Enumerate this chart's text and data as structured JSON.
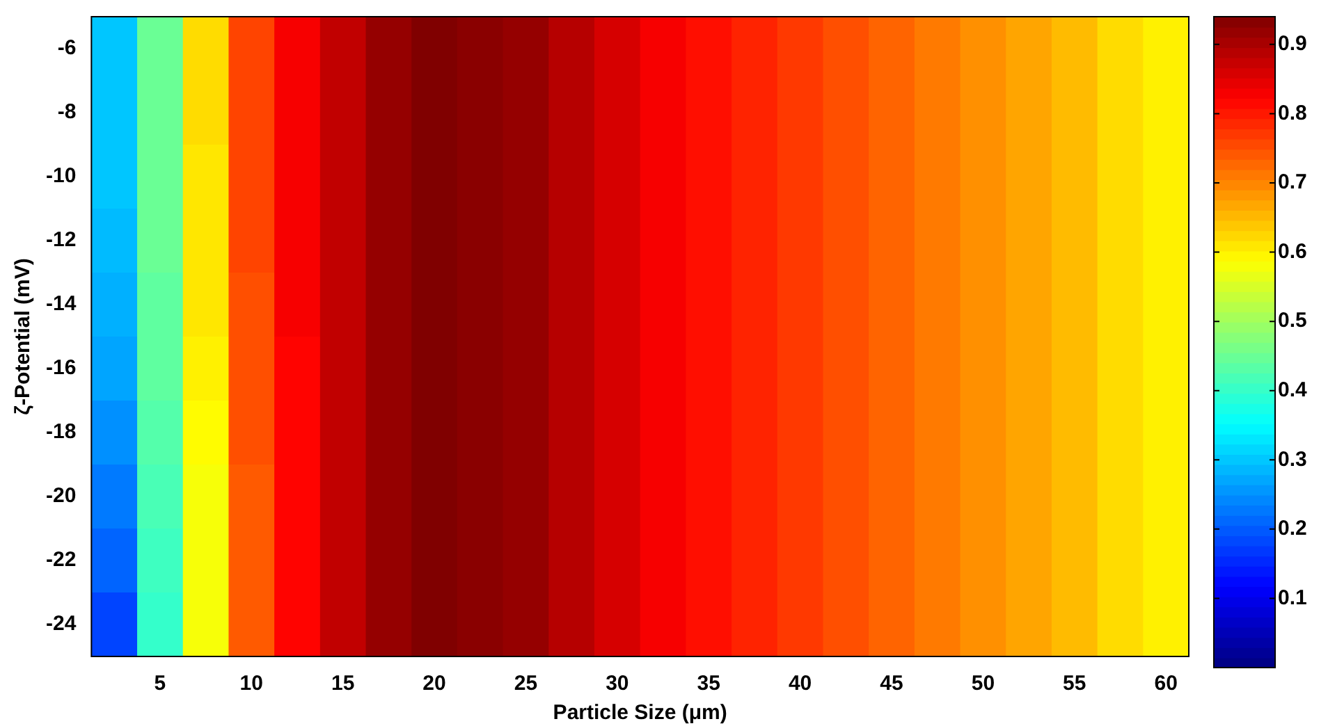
{
  "chart_data": {
    "type": "heatmap",
    "xlabel": "Particle Size (μm)",
    "ylabel": "ζ-Potential (mV)",
    "categories": [
      null,
      "5",
      null,
      "10",
      null,
      "15",
      null,
      "20",
      null,
      "25",
      null,
      "30",
      null,
      "35",
      null,
      "40",
      null,
      "45",
      null,
      "50",
      null,
      "55",
      null,
      "60"
    ],
    "y_categories": [
      "-6",
      "-8",
      "-10",
      "-12",
      "-14",
      "-16",
      "-18",
      "-20",
      "-22",
      "-24"
    ],
    "cells": [
      [
        0.3,
        0.45,
        0.62,
        0.76,
        0.83,
        0.88,
        0.92,
        0.94,
        0.93,
        0.92,
        0.89,
        0.86,
        0.83,
        0.81,
        0.79,
        0.77,
        0.75,
        0.73,
        0.71,
        0.69,
        0.67,
        0.65,
        0.62,
        0.6
      ],
      [
        0.3,
        0.45,
        0.62,
        0.76,
        0.83,
        0.88,
        0.92,
        0.94,
        0.93,
        0.92,
        0.89,
        0.86,
        0.83,
        0.81,
        0.79,
        0.77,
        0.75,
        0.73,
        0.71,
        0.69,
        0.67,
        0.65,
        0.62,
        0.6
      ],
      [
        0.3,
        0.45,
        0.61,
        0.76,
        0.83,
        0.88,
        0.92,
        0.94,
        0.93,
        0.92,
        0.89,
        0.86,
        0.83,
        0.81,
        0.79,
        0.77,
        0.75,
        0.73,
        0.71,
        0.69,
        0.67,
        0.65,
        0.62,
        0.6
      ],
      [
        0.29,
        0.45,
        0.61,
        0.76,
        0.83,
        0.88,
        0.92,
        0.94,
        0.93,
        0.92,
        0.89,
        0.86,
        0.83,
        0.81,
        0.79,
        0.77,
        0.75,
        0.73,
        0.71,
        0.69,
        0.67,
        0.65,
        0.62,
        0.6
      ],
      [
        0.28,
        0.44,
        0.61,
        0.75,
        0.83,
        0.88,
        0.92,
        0.94,
        0.93,
        0.92,
        0.89,
        0.86,
        0.83,
        0.81,
        0.79,
        0.77,
        0.75,
        0.73,
        0.71,
        0.69,
        0.67,
        0.65,
        0.62,
        0.6
      ],
      [
        0.27,
        0.44,
        0.6,
        0.75,
        0.82,
        0.88,
        0.92,
        0.94,
        0.93,
        0.92,
        0.89,
        0.86,
        0.83,
        0.81,
        0.79,
        0.77,
        0.75,
        0.73,
        0.71,
        0.69,
        0.67,
        0.65,
        0.62,
        0.6
      ],
      [
        0.25,
        0.43,
        0.59,
        0.75,
        0.82,
        0.88,
        0.92,
        0.94,
        0.93,
        0.92,
        0.89,
        0.86,
        0.83,
        0.81,
        0.79,
        0.77,
        0.75,
        0.73,
        0.71,
        0.69,
        0.67,
        0.65,
        0.62,
        0.6
      ],
      [
        0.23,
        0.42,
        0.58,
        0.74,
        0.82,
        0.88,
        0.92,
        0.94,
        0.93,
        0.92,
        0.89,
        0.86,
        0.83,
        0.81,
        0.79,
        0.77,
        0.75,
        0.73,
        0.71,
        0.69,
        0.67,
        0.65,
        0.62,
        0.6
      ],
      [
        0.21,
        0.41,
        0.58,
        0.74,
        0.82,
        0.88,
        0.92,
        0.94,
        0.93,
        0.92,
        0.89,
        0.86,
        0.83,
        0.81,
        0.79,
        0.77,
        0.75,
        0.73,
        0.71,
        0.69,
        0.67,
        0.65,
        0.62,
        0.6
      ],
      [
        0.18,
        0.4,
        0.58,
        0.74,
        0.82,
        0.88,
        0.92,
        0.94,
        0.93,
        0.92,
        0.89,
        0.86,
        0.83,
        0.81,
        0.79,
        0.77,
        0.75,
        0.73,
        0.71,
        0.69,
        0.67,
        0.65,
        0.62,
        0.6
      ]
    ],
    "clim": [
      0,
      0.94
    ],
    "cticks": [
      0.1,
      0.2,
      0.3,
      0.4,
      0.5,
      0.6,
      0.7,
      0.8,
      0.9
    ]
  }
}
